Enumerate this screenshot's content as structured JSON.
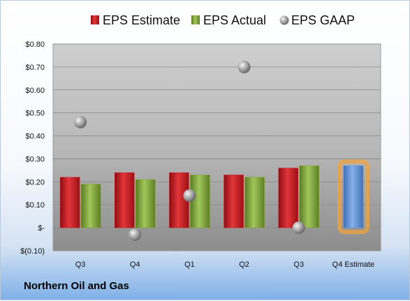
{
  "company_name": "Northern Oil and Gas",
  "colors": {
    "eps_estimate": "#c8202a",
    "eps_actual": "#7ea43a",
    "eps_gaap": "#9a9a9a",
    "forecast_bar": "#5b8fd6",
    "forecast_glow": "#f0a33c"
  },
  "chart_data": {
    "type": "bar",
    "title": "",
    "xlabel": "",
    "ylabel": "",
    "categories": [
      "Q3",
      "Q4",
      "Q1",
      "Q2",
      "Q3",
      "Q4 Estimate"
    ],
    "series": [
      {
        "name": "EPS Estimate",
        "kind": "bar",
        "values": [
          0.22,
          0.24,
          0.24,
          0.23,
          0.26,
          null
        ]
      },
      {
        "name": "EPS Actual",
        "kind": "bar",
        "values": [
          0.19,
          0.21,
          0.23,
          0.22,
          0.27,
          null
        ]
      },
      {
        "name": "EPS GAAP",
        "kind": "marker",
        "values": [
          0.46,
          -0.03,
          0.14,
          0.7,
          0.0,
          null
        ]
      }
    ],
    "forecast": {
      "category": "Q4 Estimate",
      "value": 0.27
    },
    "ylim": [
      -0.1,
      0.8
    ],
    "yticks": [
      -0.1,
      0.0,
      0.1,
      0.2,
      0.3,
      0.4,
      0.5,
      0.6,
      0.7,
      0.8
    ],
    "ytick_labels": [
      "$(0.10)",
      "$-",
      "$0.10",
      "$0.20",
      "$0.30",
      "$0.40",
      "$0.50",
      "$0.60",
      "$0.70",
      "$0.80"
    ],
    "grid": true,
    "legend_position": "top"
  }
}
